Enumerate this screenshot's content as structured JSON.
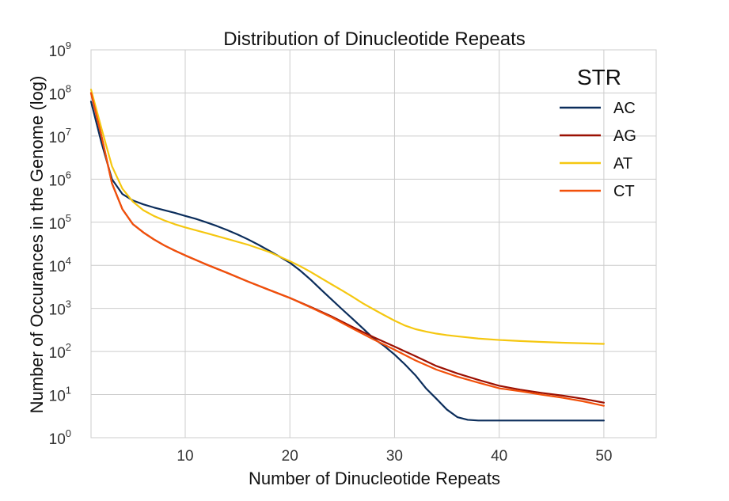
{
  "chart_data": {
    "type": "line",
    "title": "Distribution of Dinucleotide Repeats",
    "xlabel": "Number of Dinucleotide Repeats",
    "ylabel": "Number of Occurances in the Genome (log)",
    "xlim": [
      1,
      55
    ],
    "ylim_exponent": [
      0,
      9
    ],
    "yscale": "log",
    "grid": true,
    "x_ticks": [
      "10",
      "20",
      "30",
      "40",
      "50"
    ],
    "y_ticks": [
      {
        "base": "10",
        "exp": "0"
      },
      {
        "base": "10",
        "exp": "1"
      },
      {
        "base": "10",
        "exp": "2"
      },
      {
        "base": "10",
        "exp": "3"
      },
      {
        "base": "10",
        "exp": "4"
      },
      {
        "base": "10",
        "exp": "5"
      },
      {
        "base": "10",
        "exp": "6"
      },
      {
        "base": "10",
        "exp": "7"
      },
      {
        "base": "10",
        "exp": "8"
      },
      {
        "base": "10",
        "exp": "9"
      }
    ],
    "legend_title": "STR",
    "legend_position": "top-right",
    "series": [
      {
        "name": "AC",
        "color": "#0b2d5b",
        "x": [
          1,
          2,
          3,
          4,
          5,
          6,
          7,
          8,
          9,
          10,
          11,
          12,
          13,
          14,
          15,
          16,
          17,
          18,
          19,
          20,
          21,
          22,
          23,
          24,
          25,
          26,
          27,
          28,
          29,
          30,
          31,
          32,
          33,
          34,
          35,
          36,
          37,
          38,
          39,
          40,
          42,
          44,
          46,
          48,
          50
        ],
        "y": [
          63000000,
          7000000,
          1000000,
          450000,
          320000,
          260000,
          220000,
          190000,
          165000,
          140000,
          120000,
          100000,
          82000,
          66000,
          52000,
          40000,
          30000,
          22000,
          16000,
          11500,
          7500,
          4600,
          2700,
          1600,
          950,
          570,
          340,
          200,
          135,
          85,
          50,
          28,
          14,
          8,
          4.5,
          3,
          2.6,
          2.5,
          2.5,
          2.5,
          2.5,
          2.5,
          2.5,
          2.5,
          2.5
        ]
      },
      {
        "name": "AG",
        "color": "#9b1002",
        "x": [
          1,
          2,
          3,
          4,
          5,
          6,
          7,
          8,
          9,
          10,
          12,
          14,
          16,
          18,
          20,
          22,
          24,
          26,
          28,
          30,
          32,
          34,
          36,
          38,
          40,
          42,
          44,
          46,
          48,
          50
        ],
        "y": [
          100000000,
          10000000,
          800000,
          200000,
          90000,
          58000,
          40000,
          29000,
          22000,
          17000,
          10500,
          6700,
          4200,
          2700,
          1750,
          1080,
          650,
          370,
          215,
          130,
          78,
          46,
          31,
          22,
          16,
          13,
          11,
          9.5,
          8,
          6.5
        ]
      },
      {
        "name": "AT",
        "color": "#f5c710",
        "x": [
          1,
          2,
          3,
          4,
          5,
          6,
          7,
          8,
          9,
          10,
          12,
          14,
          16,
          18,
          19,
          20,
          21,
          22,
          23,
          24,
          25,
          26,
          27,
          28,
          29,
          30,
          31,
          32,
          33,
          34,
          35,
          36,
          37,
          38,
          40,
          42,
          44,
          46,
          48,
          50
        ],
        "y": [
          120000000,
          15000000,
          2000000,
          600000,
          300000,
          190000,
          140000,
          110000,
          90000,
          76000,
          56000,
          41000,
          30000,
          20500,
          16000,
          12500,
          9500,
          7000,
          5000,
          3600,
          2600,
          1850,
          1300,
          950,
          700,
          520,
          400,
          330,
          290,
          260,
          240,
          225,
          212,
          200,
          185,
          175,
          167,
          160,
          155,
          150
        ]
      },
      {
        "name": "CT",
        "color": "#f2500a",
        "x": [
          1,
          2,
          3,
          4,
          5,
          6,
          7,
          8,
          9,
          10,
          12,
          14,
          16,
          18,
          20,
          22,
          24,
          26,
          28,
          30,
          32,
          34,
          36,
          38,
          40,
          42,
          44,
          46,
          48,
          50
        ],
        "y": [
          100000000,
          10000000,
          800000,
          200000,
          90000,
          58000,
          40000,
          29000,
          22000,
          17000,
          10500,
          6700,
          4200,
          2700,
          1750,
          1050,
          620,
          340,
          190,
          110,
          62,
          38,
          26,
          19,
          14,
          12,
          10,
          8.5,
          7,
          5.5
        ]
      }
    ]
  }
}
